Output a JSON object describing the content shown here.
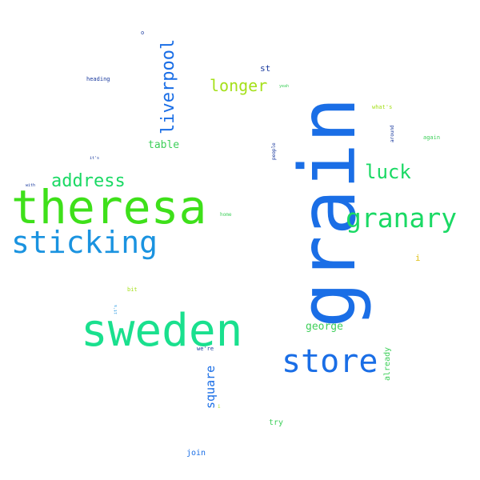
{
  "words": [
    {
      "text": "grain",
      "color": "#1a6ee6",
      "orientation": "vertical"
    },
    {
      "text": "theresa",
      "color": "#3ee01a",
      "orientation": "horizontal"
    },
    {
      "text": "sweden",
      "color": "#1ae08e",
      "orientation": "horizontal"
    },
    {
      "text": "sticking",
      "color": "#1a93e0",
      "orientation": "horizontal"
    },
    {
      "text": "store",
      "color": "#1a6ee6",
      "orientation": "horizontal"
    },
    {
      "text": "granary",
      "color": "#1ad964",
      "orientation": "horizontal"
    },
    {
      "text": "liverpool",
      "color": "#1a6ee6",
      "orientation": "vertical"
    },
    {
      "text": "address",
      "color": "#1ad964",
      "orientation": "horizontal"
    },
    {
      "text": "luck",
      "color": "#1ad964",
      "orientation": "horizontal"
    },
    {
      "text": "longer",
      "color": "#a5e01a",
      "orientation": "horizontal"
    },
    {
      "text": "square",
      "color": "#1a6ee6",
      "orientation": "vertical"
    },
    {
      "text": "george",
      "color": "#3ecf5a",
      "orientation": "horizontal"
    },
    {
      "text": "table",
      "color": "#3ecf5a",
      "orientation": "horizontal"
    },
    {
      "text": "already",
      "color": "#3ecf5a",
      "orientation": "vertical"
    },
    {
      "text": "st",
      "color": "#1a3a9e",
      "orientation": "horizontal"
    },
    {
      "text": "join",
      "color": "#1a6ee6",
      "orientation": "horizontal"
    },
    {
      "text": "try",
      "color": "#3ecf5a",
      "orientation": "horizontal"
    },
    {
      "text": "heading",
      "color": "#1a3a9e",
      "orientation": "horizontal"
    },
    {
      "text": "what's",
      "color": "#a5e01a",
      "orientation": "horizontal"
    },
    {
      "text": "again",
      "color": "#3ecf5a",
      "orientation": "horizontal"
    },
    {
      "text": "around",
      "color": "#1a3a9e",
      "orientation": "vertical"
    },
    {
      "text": "people",
      "color": "#1a3a9e",
      "orientation": "vertical"
    },
    {
      "text": "home",
      "color": "#3ecf5a",
      "orientation": "horizontal"
    },
    {
      "text": "bit",
      "color": "#a5e01a",
      "orientation": "horizontal"
    },
    {
      "text": "we're",
      "color": "#1a3a9e",
      "orientation": "horizontal"
    },
    {
      "text": "yeah",
      "color": "#3ecf5a",
      "orientation": "horizontal"
    },
    {
      "text": "with",
      "color": "#1a3a9e",
      "orientation": "horizontal"
    },
    {
      "text": "i",
      "color": "#e0c21a",
      "orientation": "horizontal"
    },
    {
      "text": "o",
      "color": "#1a3a9e",
      "orientation": "horizontal"
    },
    {
      "text": "it's",
      "color": "#1a3a9e",
      "orientation": "horizontal"
    },
    {
      "text": "it's",
      "color": "#1a93e0",
      "orientation": "vertical"
    },
    {
      "text": "i",
      "color": "#a5e01a",
      "orientation": "horizontal"
    }
  ]
}
